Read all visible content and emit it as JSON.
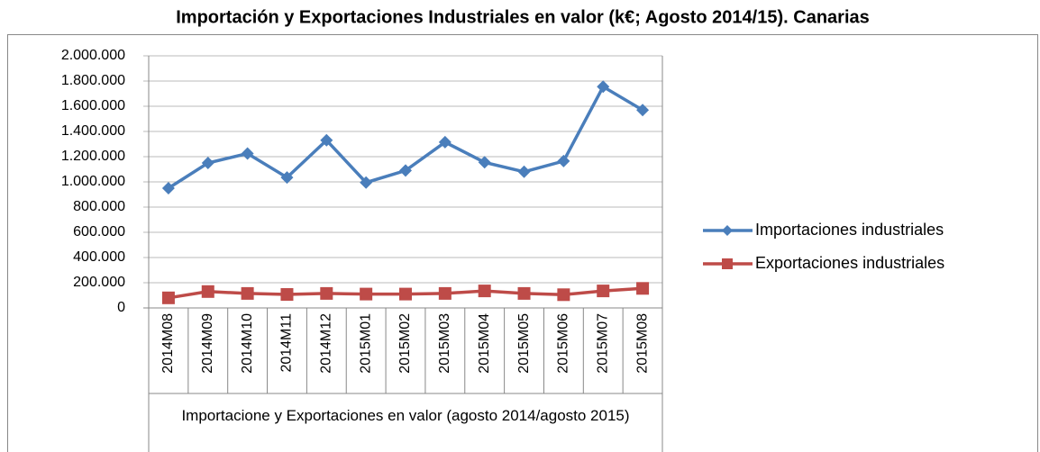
{
  "chart_data": {
    "type": "line",
    "title": "Importación y Exportaciones Industriales en valor (k€; Agosto 2014/15). Canarias",
    "x_label": "Importacione y Exportaciones en valor (agosto 2014/agosto 2015)",
    "categories": [
      "2014M08",
      "2014M09",
      "2014M10",
      "2014M11",
      "2014M12",
      "2015M01",
      "2015M02",
      "2015M03",
      "2015M04",
      "2015M05",
      "2015M06",
      "2015M07",
      "2015M08"
    ],
    "series": [
      {
        "name": "Importaciones industriales",
        "color": "#4a7ebb",
        "marker": "diamond",
        "values": [
          950000,
          1150000,
          1225000,
          1035000,
          1330000,
          995000,
          1090000,
          1315000,
          1155000,
          1080000,
          1165000,
          1755000,
          1570000
        ]
      },
      {
        "name": "Exportaciones industriales",
        "color": "#be4b48",
        "marker": "square",
        "values": [
          80000,
          130000,
          115000,
          107000,
          115000,
          110000,
          110000,
          115000,
          135000,
          115000,
          105000,
          135000,
          155000
        ]
      }
    ],
    "ylim": [
      0,
      2000000
    ],
    "yticks": [
      0,
      {
        "value": 200000,
        "label": "200.000"
      },
      {
        "value": 400000,
        "label": "400.000"
      },
      {
        "value": 600000,
        "label": "600.000"
      },
      {
        "value": 800000,
        "label": "800.000"
      },
      {
        "value": 1000000,
        "label": "1.000.000"
      },
      {
        "value": 1200000,
        "label": "1.200.000"
      },
      {
        "value": 1400000,
        "label": "1.400.000"
      },
      {
        "value": 1600000,
        "label": "1.600.000"
      },
      {
        "value": 1800000,
        "label": "1.800.000"
      },
      {
        "value": 2000000,
        "label": "2.000.000"
      }
    ],
    "grid": true,
    "legend": "right"
  }
}
